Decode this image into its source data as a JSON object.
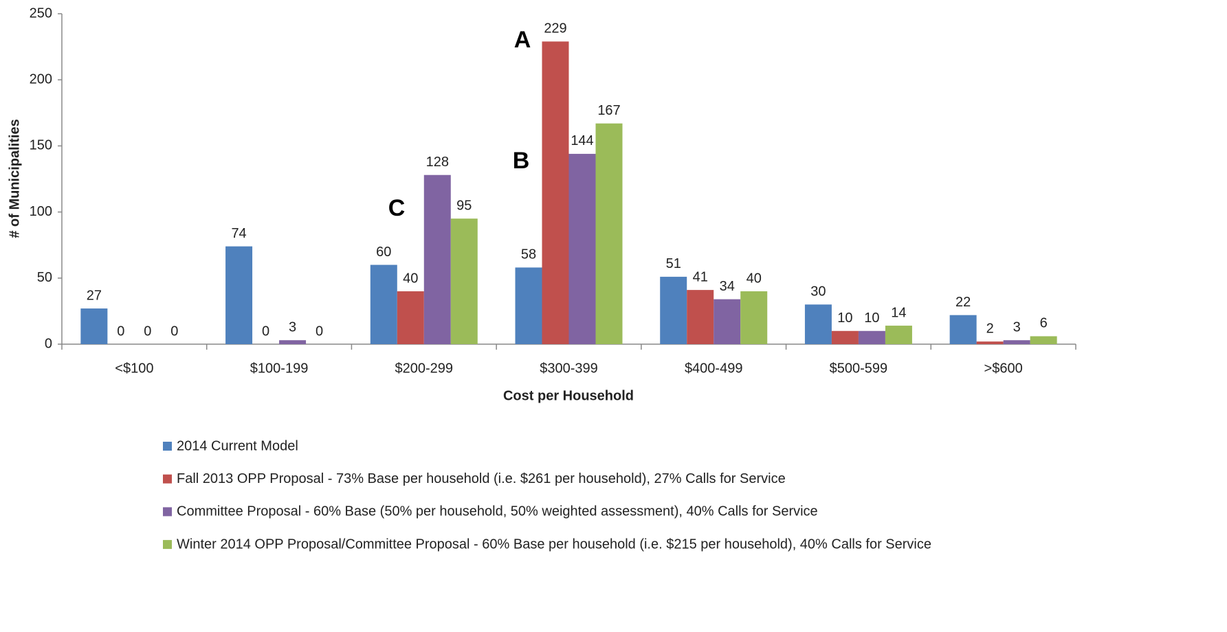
{
  "chart_data": {
    "type": "bar",
    "x_label": "Cost per Household",
    "y_label": "# of Municipalities",
    "annotations": [
      "A",
      "B",
      "C"
    ],
    "categories": [
      "<$100",
      "$100-199",
      "$200-299",
      "$300-399",
      "$400-499",
      "$500-599",
      ">$600"
    ],
    "series": [
      {
        "name": "2014 Current Model",
        "color": "#4f81bd",
        "values": [
          27,
          74,
          60,
          58,
          51,
          30,
          22
        ]
      },
      {
        "name": "Fall 2013 OPP Proposal - 73% Base per household (i.e. $261 per household), 27% Calls for Service",
        "color": "#c0504d",
        "values": [
          0,
          0,
          40,
          229,
          41,
          10,
          2
        ]
      },
      {
        "name": "Committee Proposal - 60% Base (50% per household, 50% weighted assessment), 40% Calls for Service",
        "color": "#8064a2",
        "values": [
          0,
          3,
          128,
          144,
          34,
          10,
          3
        ]
      },
      {
        "name": "Winter 2014 OPP Proposal/Committee Proposal - 60% Base per household (i.e. $215 per household), 40% Calls for Service",
        "color": "#9bbb59",
        "values": [
          0,
          0,
          95,
          167,
          40,
          14,
          6
        ]
      }
    ],
    "ylim": [
      0,
      250
    ],
    "yticks": [
      0,
      50,
      100,
      150,
      200,
      250
    ]
  }
}
